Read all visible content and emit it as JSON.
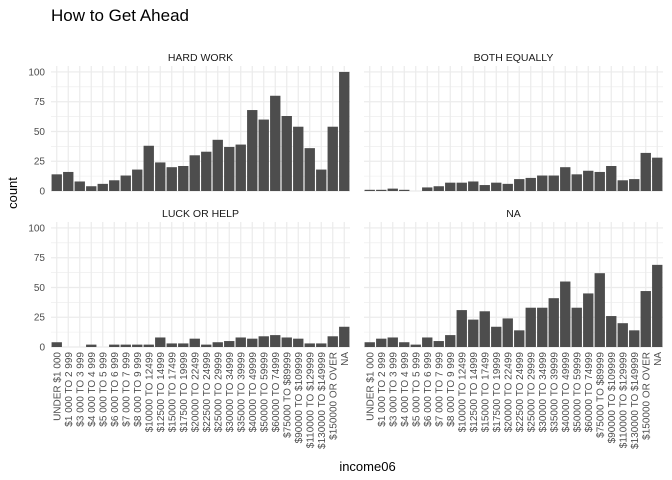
{
  "chart_data": {
    "type": "bar",
    "title": "How to Get Ahead",
    "xlabel": "income06",
    "ylabel": "count",
    "ylim": [
      0,
      105
    ],
    "yticks": [
      0,
      25,
      50,
      75,
      100
    ],
    "grid": true,
    "bar_color": "#4d4d4d",
    "grid_color": "#ebebeb",
    "categories": [
      "UNDER $1 000",
      "$1 000 TO 2 999",
      "$3 000 TO 3 999",
      "$4 000 TO 4 999",
      "$5 000 TO 5 999",
      "$6 000 TO 6 999",
      "$7 000 TO 7 999",
      "$8 000 TO 9 999",
      "$10000 TO 12499",
      "$12500 TO 14999",
      "$15000 TO 17499",
      "$17500 TO 19999",
      "$20000 TO 22499",
      "$22500 TO 24999",
      "$25000 TO 29999",
      "$30000 TO 34999",
      "$35000 TO 39999",
      "$40000 TO 49999",
      "$50000 TO 59999",
      "$60000 TO 74999",
      "$75000 TO $89999",
      "$90000 TO $109999",
      "$110000 TO $129999",
      "$130000 TO $149999",
      "$150000 OR OVER",
      "NA"
    ],
    "panels": [
      {
        "name": "HARD WORK",
        "values": [
          14,
          16,
          8,
          4,
          6,
          9,
          13,
          18,
          38,
          24,
          20,
          21,
          30,
          33,
          43,
          37,
          39,
          68,
          60,
          80,
          63,
          54,
          36,
          18,
          54,
          100
        ]
      },
      {
        "name": "BOTH EQUALLY",
        "values": [
          1,
          1,
          2,
          1,
          0,
          3,
          4,
          7,
          7,
          8,
          5,
          7,
          6,
          10,
          11,
          13,
          13,
          20,
          14,
          17,
          16,
          21,
          9,
          10,
          32,
          28
        ]
      },
      {
        "name": "LUCK OR HELP",
        "values": [
          4,
          0,
          0,
          2,
          0,
          2,
          2,
          2,
          2,
          8,
          3,
          3,
          7,
          2,
          4,
          5,
          8,
          7,
          9,
          10,
          8,
          7,
          3,
          3,
          9,
          17
        ]
      },
      {
        "name": "NA",
        "values": [
          4,
          7,
          8,
          4,
          2,
          8,
          5,
          10,
          31,
          23,
          30,
          17,
          24,
          14,
          33,
          33,
          41,
          55,
          33,
          45,
          62,
          26,
          20,
          14,
          47,
          69
        ]
      }
    ]
  }
}
